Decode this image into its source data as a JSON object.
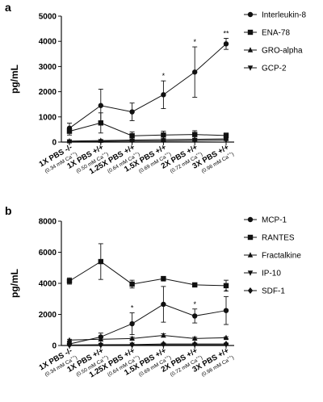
{
  "chart_data": [
    {
      "panel_label": "a",
      "type": "line",
      "ylabel": "pg/mL",
      "ylim": [
        0,
        5000
      ],
      "yticks": [
        "0",
        "1000",
        "2000",
        "3000",
        "4000",
        "5000"
      ],
      "categories": [
        {
          "main": "1X PBS -/-",
          "sub": "(0.34 mM Ca",
          "sup": "++",
          "close": ")"
        },
        {
          "main": "1X PBS +/+",
          "sub": "(0.50 mM Ca",
          "sup": "++",
          "close": ")"
        },
        {
          "main": "1.25X PBS +/+",
          "sub": "(0.64 mM Ca",
          "sup": "++",
          "close": ")"
        },
        {
          "main": "1.5X PBS +/+",
          "sub": "(0.69 mM Ca",
          "sup": "++",
          "close": ")"
        },
        {
          "main": "2X PBS +/+",
          "sub": "(0.72 mM Ca",
          "sup": "++",
          "close": ")"
        },
        {
          "main": "3X PBS +/+",
          "sub": "(0.96 mM Ca",
          "sup": "++",
          "close": ")"
        }
      ],
      "series": [
        {
          "name": "Interleukin-8",
          "marker": "circle",
          "values": [
            550,
            1450,
            1200,
            1880,
            2780,
            3900
          ],
          "errors": [
            200,
            650,
            350,
            550,
            1000,
            220
          ]
        },
        {
          "name": "ENA-78",
          "marker": "square",
          "values": [
            430,
            760,
            250,
            280,
            300,
            260
          ],
          "errors": [
            150,
            400,
            150,
            150,
            150,
            100
          ]
        },
        {
          "name": "GRO-alpha",
          "marker": "triangle-up",
          "values": [
            40,
            60,
            80,
            100,
            110,
            130
          ],
          "errors": [
            20,
            30,
            40,
            40,
            40,
            40
          ]
        },
        {
          "name": "GCP-2",
          "marker": "triangle-down",
          "values": [
            20,
            30,
            40,
            50,
            60,
            80
          ],
          "errors": [
            10,
            15,
            20,
            20,
            20,
            20
          ]
        }
      ],
      "annotations": [
        "",
        "",
        "",
        "*",
        "*",
        "**"
      ]
    },
    {
      "panel_label": "b",
      "type": "line",
      "ylabel": "pg/mL",
      "ylim": [
        0,
        8000
      ],
      "yticks": [
        "0",
        "2000",
        "4000",
        "6000",
        "8000"
      ],
      "categories": [
        {
          "main": "1X PBS -/-",
          "sub": "(0.34 mM Ca",
          "sup": "++",
          "close": ")"
        },
        {
          "main": "1X PBS +/+",
          "sub": "(0.50 mM Ca",
          "sup": "++",
          "close": ")"
        },
        {
          "main": "1.25X PBS +/+",
          "sub": "(0.64 mM Ca",
          "sup": "++",
          "close": ")"
        },
        {
          "main": "1.5X PBS +/+",
          "sub": "(0.69 mM Ca",
          "sup": "++",
          "close": ")"
        },
        {
          "main": "2X PBS +/+",
          "sub": "(0.72 mM Ca",
          "sup": "++",
          "close": ")"
        },
        {
          "main": "3X PBS +/+",
          "sub": "(0.96 mM Ca",
          "sup": "++",
          "close": ")"
        }
      ],
      "series": [
        {
          "name": "MCP-1",
          "marker": "circle",
          "values": [
            100,
            550,
            1400,
            2650,
            1900,
            2250
          ],
          "errors": [
            50,
            250,
            700,
            1150,
            450,
            900
          ]
        },
        {
          "name": "RANTES",
          "marker": "square",
          "values": [
            4150,
            5400,
            3950,
            4300,
            3900,
            3850
          ],
          "errors": [
            200,
            1150,
            250,
            150,
            80,
            350
          ]
        },
        {
          "name": "Fractalkine",
          "marker": "triangle-up",
          "values": [
            350,
            400,
            450,
            650,
            450,
            500
          ],
          "errors": [
            50,
            100,
            80,
            100,
            80,
            60
          ]
        },
        {
          "name": "IP-10",
          "marker": "triangle-down",
          "values": [
            20,
            30,
            40,
            40,
            40,
            40
          ],
          "errors": [
            10,
            10,
            10,
            10,
            10,
            10
          ]
        },
        {
          "name": "SDF-1",
          "marker": "diamond",
          "values": [
            30,
            50,
            60,
            100,
            100,
            100
          ],
          "errors": [
            10,
            20,
            20,
            30,
            30,
            30
          ]
        }
      ],
      "annotations": [
        "",
        "",
        "*",
        "*",
        "*",
        "*"
      ]
    }
  ]
}
